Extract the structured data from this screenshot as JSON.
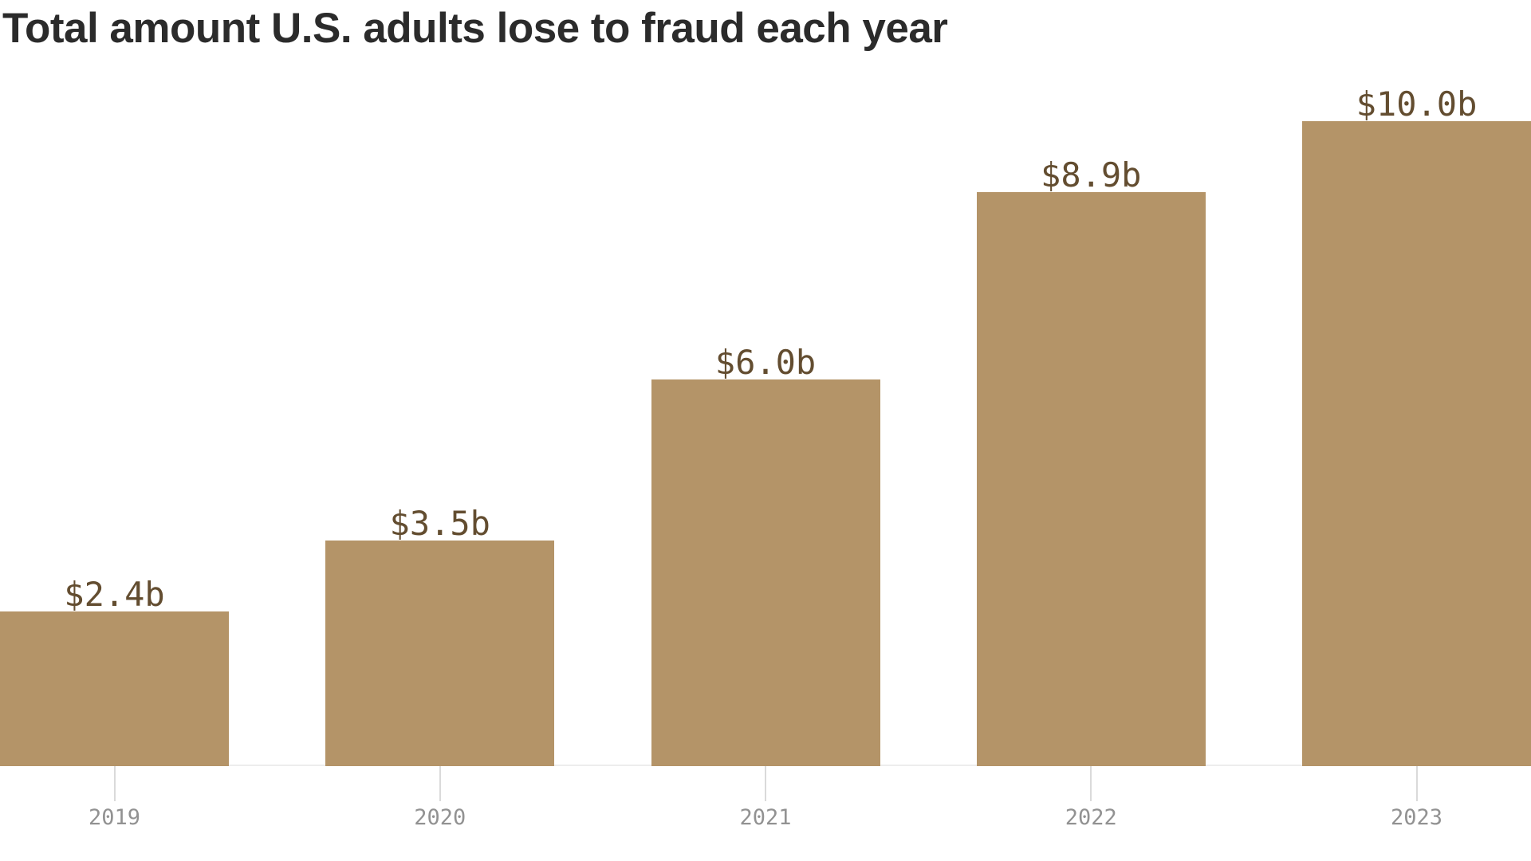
{
  "title": "Total amount U.S. adults lose to fraud each year",
  "chart_data": {
    "type": "bar",
    "title": "Total amount U.S. adults lose to fraud each year",
    "categories": [
      "2019",
      "2020",
      "2021",
      "2022",
      "2023"
    ],
    "values": [
      2.4,
      3.5,
      6.0,
      8.9,
      10.0
    ],
    "value_labels": [
      "$2.4b",
      "$3.5b",
      "$6.0b",
      "$8.9b",
      "$10.0b"
    ],
    "xlabel": "",
    "ylabel": "",
    "ylim": [
      0,
      10.4
    ],
    "grid": false,
    "legend_position": "none",
    "colors": {
      "bar": "#b49468",
      "value_label": "#634d30",
      "axis_label": "#929292",
      "tick": "#dadada",
      "baseline": "#ededed",
      "title": "#2b2b2b",
      "background": "#ffffff"
    }
  }
}
